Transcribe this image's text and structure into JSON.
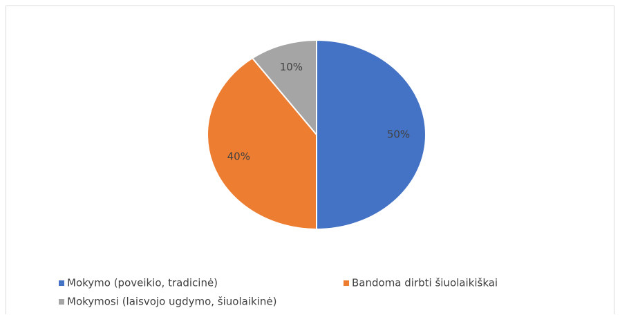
{
  "chart_data": {
    "type": "pie",
    "categories": [
      "Mokymo (poveikio, tradicinė)",
      "Bandoma dirbti šiuolaikiškai",
      "Mokymosi (laisvojo ugdymo, šiuolaikinė)"
    ],
    "values": [
      50,
      40,
      10
    ],
    "value_labels": [
      "50%",
      "40%",
      "10%"
    ],
    "colors": [
      "#4472c4",
      "#ed7d31",
      "#a5a5a5"
    ],
    "legend": "bottom"
  }
}
